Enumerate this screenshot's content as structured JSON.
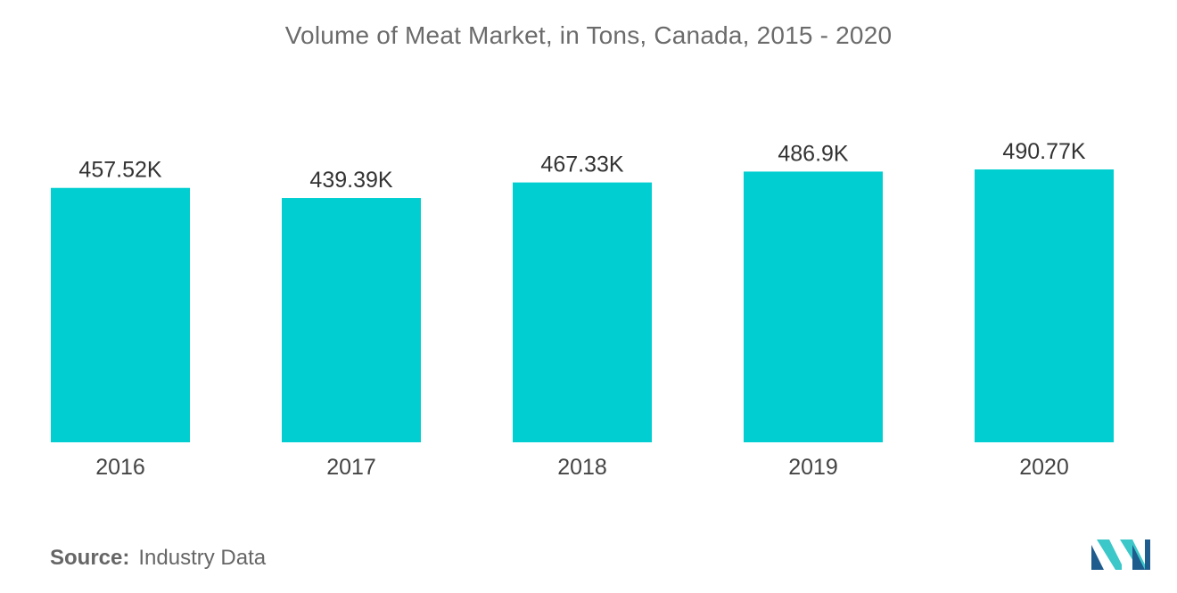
{
  "chart_data": {
    "type": "bar",
    "title": "Volume of Meat Market, in Tons, Canada, 2015 - 2020",
    "xlabel": "",
    "ylabel": "",
    "categories": [
      "2016",
      "2017",
      "2018",
      "2019",
      "2020"
    ],
    "values": [
      457.52,
      439.39,
      467.33,
      486.9,
      490.77
    ],
    "value_labels": [
      "457.52K",
      "439.39K",
      "467.33K",
      "486.9K",
      "490.77K"
    ],
    "value_unit": "K tons",
    "ylim": [
      0,
      500
    ],
    "grid": false,
    "legend": "none",
    "bar_color": "#00ced1"
  },
  "footer": {
    "source_label": "Source:",
    "source_text": "Industry Data"
  },
  "logo": {
    "icon": "mordor-intelligence-logo-icon",
    "colors": [
      "#1f5c8e",
      "#3cc7c9"
    ]
  }
}
